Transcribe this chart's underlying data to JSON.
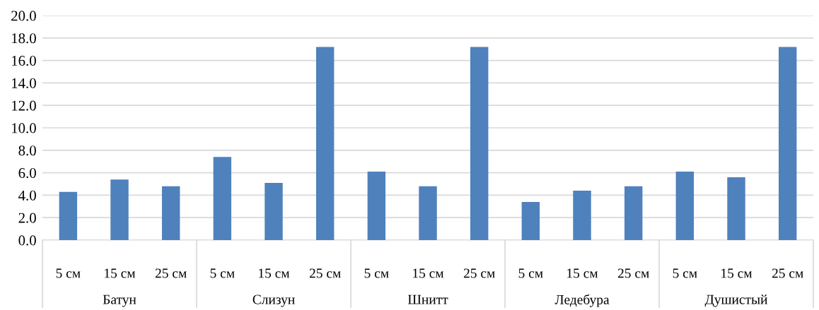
{
  "chart_data": {
    "type": "bar",
    "categories": [
      "5 см",
      "15 см",
      "25 см",
      "5 см",
      "15 см",
      "25 см",
      "5 см",
      "15 см",
      "25 см",
      "5 см",
      "15 см",
      "25 см",
      "5 см",
      "15 см",
      "25 см"
    ],
    "values": [
      4.3,
      5.4,
      4.8,
      7.4,
      5.1,
      17.2,
      6.1,
      4.8,
      17.2,
      3.4,
      4.4,
      4.8,
      6.1,
      5.6,
      17.2
    ],
    "color": "#4f81bd",
    "ylim": [
      0,
      20
    ],
    "yticks": [
      {
        "value": 0,
        "label": "0.0"
      },
      {
        "value": 2,
        "label": "2.0"
      },
      {
        "value": 4,
        "label": "4.0"
      },
      {
        "value": 6,
        "label": "6.0"
      },
      {
        "value": 8,
        "label": "8.0"
      },
      {
        "value": 10,
        "label": "10.0"
      },
      {
        "value": 12,
        "label": "12.0"
      },
      {
        "value": 14,
        "label": "14.0"
      },
      {
        "value": 16,
        "label": "16.0"
      },
      {
        "value": 18,
        "label": "18.0"
      },
      {
        "value": 20,
        "label": "20.0"
      }
    ],
    "grid": "y",
    "annotations": [
      "Батун",
      "Слизун",
      "Шнитт",
      "Ледебура",
      "Душистый"
    ]
  }
}
